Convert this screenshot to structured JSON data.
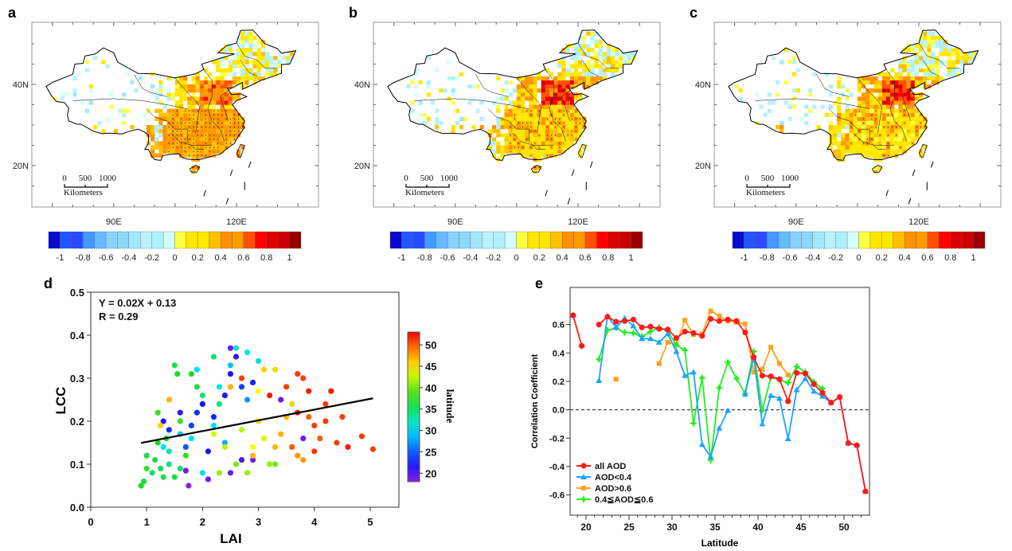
{
  "panels": {
    "a": "a",
    "b": "b",
    "c": "c",
    "d": "d",
    "e": "e"
  },
  "maps": {
    "lon_ticks": [
      "90E",
      "120E"
    ],
    "lat_ticks": [
      "40N",
      "20N"
    ],
    "scale_labels": [
      "0",
      "500",
      "1000"
    ],
    "scale_unit": "Kilometers",
    "colorbar_labels": [
      "-1",
      "-0.8",
      "-0.6",
      "-0.4",
      "-0.2",
      "0",
      "0.2",
      "0.4",
      "0.6",
      "0.8",
      "1"
    ],
    "colorbar_colors": [
      "#0a0acc",
      "#2255ff",
      "#2a4cff",
      "#4499ff",
      "#66bbff",
      "#88d4ff",
      "#8cd8f8",
      "#a0e8ff",
      "#b8f2ff",
      "#b0f0ff",
      "#d4ffff",
      "#ffff44",
      "#ffe600",
      "#ffe800",
      "#ffc000",
      "#ff9000",
      "#ff9a00",
      "#ff5000",
      "#ff0000",
      "#dd0000",
      "#cc0000",
      "#990000"
    ]
  },
  "chart_data": [
    {
      "type": "scatter",
      "panel": "d",
      "xlabel": "LAI",
      "ylabel": "LCC",
      "xlim": [
        0,
        5.5
      ],
      "ylim": [
        0,
        0.5
      ],
      "xticks": [
        "0",
        "1",
        "2",
        "3",
        "4",
        "5"
      ],
      "yticks": [
        "0.0",
        "0.1",
        "0.2",
        "0.3",
        "0.4",
        "0.5"
      ],
      "equation": "Y = 0.02X + 0.13",
      "r_text": "R = 0.29",
      "fit": {
        "slope": 0.025,
        "intercept": 0.127,
        "x_range": [
          0.9,
          5.05
        ]
      },
      "colorbar": {
        "label": "latitude",
        "ticks": [
          "20",
          "25",
          "30",
          "35",
          "40",
          "45",
          "50"
        ],
        "range": [
          18,
          53
        ]
      },
      "points": [
        [
          0.9,
          0.05,
          37
        ],
        [
          0.95,
          0.06,
          36
        ],
        [
          1.0,
          0.09,
          38
        ],
        [
          1.0,
          0.12,
          36
        ],
        [
          1.1,
          0.08,
          35
        ],
        [
          1.2,
          0.15,
          37
        ],
        [
          1.3,
          0.07,
          36
        ],
        [
          1.4,
          0.1,
          34
        ],
        [
          1.5,
          0.33,
          36
        ],
        [
          1.55,
          0.31,
          37
        ],
        [
          1.2,
          0.22,
          38
        ],
        [
          1.4,
          0.13,
          33
        ],
        [
          1.6,
          0.09,
          35
        ],
        [
          1.7,
          0.12,
          38
        ],
        [
          1.8,
          0.31,
          37
        ],
        [
          1.9,
          0.28,
          36
        ],
        [
          2.0,
          0.26,
          35
        ],
        [
          2.2,
          0.35,
          35
        ],
        [
          2.3,
          0.24,
          34
        ],
        [
          1.6,
          0.2,
          38
        ],
        [
          1.15,
          0.11,
          36
        ],
        [
          1.35,
          0.16,
          37
        ],
        [
          1.5,
          0.07,
          36
        ],
        [
          1.25,
          0.09,
          35
        ],
        [
          1.3,
          0.2,
          22
        ],
        [
          1.4,
          0.18,
          23
        ],
        [
          1.6,
          0.22,
          21
        ],
        [
          1.8,
          0.19,
          24
        ],
        [
          2.0,
          0.24,
          22
        ],
        [
          2.2,
          0.21,
          23
        ],
        [
          2.5,
          0.31,
          22
        ],
        [
          2.6,
          0.35,
          21
        ],
        [
          2.7,
          0.28,
          24
        ],
        [
          2.9,
          0.29,
          23
        ],
        [
          1.7,
          0.14,
          25
        ],
        [
          2.1,
          0.13,
          22
        ],
        [
          2.4,
          0.26,
          22
        ],
        [
          1.9,
          0.22,
          23
        ],
        [
          1.75,
          0.05,
          18
        ],
        [
          2.1,
          0.065,
          19
        ],
        [
          2.5,
          0.08,
          19
        ],
        [
          1.7,
          0.085,
          19
        ],
        [
          2.5,
          0.37,
          19
        ],
        [
          3.4,
          0.25,
          19
        ],
        [
          2.7,
          0.11,
          20
        ],
        [
          2.9,
          0.11,
          19
        ],
        [
          3.8,
          0.16,
          19
        ],
        [
          1.3,
          0.14,
          30
        ],
        [
          1.6,
          0.17,
          29
        ],
        [
          1.9,
          0.32,
          30
        ],
        [
          2.2,
          0.19,
          31
        ],
        [
          2.5,
          0.33,
          29
        ],
        [
          2.6,
          0.37,
          32
        ],
        [
          2.8,
          0.36,
          31
        ],
        [
          3.0,
          0.34,
          32
        ],
        [
          2.0,
          0.08,
          30
        ],
        [
          2.4,
          0.15,
          28
        ],
        [
          2.8,
          0.25,
          27
        ],
        [
          1.8,
          0.16,
          30
        ],
        [
          2.3,
          0.28,
          31
        ],
        [
          2.2,
          0.17,
          43
        ],
        [
          2.4,
          0.14,
          42
        ],
        [
          2.8,
          0.08,
          41
        ],
        [
          2.9,
          0.14,
          44
        ],
        [
          3.0,
          0.2,
          43
        ],
        [
          3.2,
          0.1,
          41
        ],
        [
          3.3,
          0.1,
          40
        ],
        [
          3.0,
          0.27,
          44
        ],
        [
          2.6,
          0.1,
          40
        ],
        [
          2.3,
          0.08,
          41
        ],
        [
          2.7,
          0.18,
          42
        ],
        [
          3.1,
          0.16,
          43
        ],
        [
          1.25,
          0.19,
          46
        ],
        [
          1.4,
          0.25,
          47
        ],
        [
          2.5,
          0.28,
          47
        ],
        [
          3.1,
          0.32,
          46
        ],
        [
          3.3,
          0.32,
          46
        ],
        [
          3.4,
          0.17,
          47
        ],
        [
          3.6,
          0.24,
          46
        ],
        [
          3.7,
          0.12,
          48
        ],
        [
          3.0,
          0.2,
          46
        ],
        [
          2.9,
          0.12,
          47
        ],
        [
          3.8,
          0.11,
          48
        ],
        [
          3.3,
          0.14,
          47
        ],
        [
          3.5,
          0.21,
          47
        ],
        [
          3.5,
          0.28,
          51
        ],
        [
          3.7,
          0.31,
          51
        ],
        [
          3.9,
          0.27,
          52
        ],
        [
          4.0,
          0.13,
          51
        ],
        [
          4.2,
          0.24,
          51
        ],
        [
          4.3,
          0.27,
          52
        ],
        [
          4.4,
          0.15,
          51
        ],
        [
          4.5,
          0.21,
          51
        ],
        [
          4.6,
          0.14,
          52
        ],
        [
          4.85,
          0.165,
          51
        ],
        [
          5.05,
          0.135,
          51
        ],
        [
          4.1,
          0.16,
          50
        ],
        [
          3.8,
          0.3,
          51
        ],
        [
          3.2,
          0.26,
          52
        ],
        [
          2.7,
          0.3,
          51
        ],
        [
          3.9,
          0.21,
          50
        ],
        [
          4.2,
          0.2,
          51
        ],
        [
          3.6,
          0.14,
          50
        ],
        [
          4.0,
          0.19,
          51
        ],
        [
          3.7,
          0.22,
          52
        ]
      ]
    },
    {
      "type": "line",
      "panel": "e",
      "xlabel": "Latitude",
      "ylabel": "Correlation Coefficient",
      "xlim": [
        18.2,
        52.8
      ],
      "ylim": [
        -0.62,
        0.72
      ],
      "xticks": [
        "20",
        "25",
        "30",
        "35",
        "40",
        "45",
        "50"
      ],
      "yticks": [
        "-0.6",
        "-0.4",
        "-0.2",
        "0.0",
        "0.2",
        "0.4",
        "0.6"
      ],
      "reference_line": 0,
      "legend_position": "bottom-left",
      "series": [
        {
          "name": "all AOD",
          "color": "#ff1a1a",
          "marker": "circle",
          "points": [
            [
              18.5,
              0.665
            ],
            [
              19.5,
              0.45
            ],
            null,
            [
              21.5,
              0.6
            ],
            [
              22.5,
              0.655
            ],
            [
              23.5,
              0.62
            ],
            [
              24.5,
              0.625
            ],
            [
              25.5,
              0.635
            ],
            [
              26.5,
              0.58
            ],
            [
              27.5,
              0.585
            ],
            [
              28.5,
              0.57
            ],
            [
              29.5,
              0.565
            ],
            [
              30.5,
              0.505
            ],
            [
              31.5,
              0.55
            ],
            [
              32.5,
              0.54
            ],
            [
              33.5,
              0.52
            ],
            [
              34.5,
              0.64
            ],
            [
              35.5,
              0.625
            ],
            [
              36.5,
              0.635
            ],
            [
              37.5,
              0.625
            ],
            [
              38.5,
              0.545
            ],
            [
              39.5,
              0.37
            ],
            [
              40.5,
              0.24
            ],
            [
              41.5,
              0.235
            ],
            [
              42.5,
              0.215
            ],
            [
              43.5,
              0.06
            ],
            [
              44.5,
              0.26
            ],
            [
              45.5,
              0.255
            ],
            [
              46.5,
              0.18
            ],
            [
              47.5,
              0.12
            ],
            [
              48.5,
              0.05
            ],
            [
              49.5,
              0.09
            ],
            [
              50.5,
              -0.235
            ],
            [
              51.5,
              -0.25
            ],
            [
              52.5,
              -0.575
            ]
          ]
        },
        {
          "name": "AOD<0.4",
          "color": "#1aa3ff",
          "marker": "triangle",
          "points": [
            [
              18.5,
              0.665
            ],
            null,
            [
              21.5,
              0.205
            ],
            [
              22.5,
              0.66
            ],
            [
              23.5,
              0.58
            ],
            [
              24.5,
              0.645
            ],
            [
              25.5,
              0.59
            ],
            [
              26.5,
              0.5
            ],
            [
              27.5,
              0.5
            ],
            [
              28.5,
              0.475
            ],
            [
              29.5,
              0.535
            ],
            [
              30.5,
              0.41
            ],
            [
              31.5,
              0.24
            ],
            [
              32.5,
              0.265
            ],
            [
              33.5,
              -0.245
            ],
            [
              34.5,
              -0.33
            ],
            [
              35.5,
              -0.13
            ],
            [
              36.5,
              -0.005
            ],
            null,
            [
              38.5,
              0.11
            ],
            [
              39.5,
              0.37
            ],
            [
              40.5,
              -0.1
            ],
            [
              41.5,
              0.1
            ],
            [
              42.5,
              0.08
            ],
            [
              43.5,
              -0.205
            ],
            [
              44.5,
              0.14
            ],
            [
              45.5,
              0.22
            ],
            [
              46.5,
              0.13
            ],
            [
              47.5,
              0.095
            ],
            [
              48.5,
              0.05
            ],
            [
              49.5,
              0.09
            ],
            [
              50.5,
              -0.235
            ],
            [
              51.5,
              -0.25
            ],
            [
              52.5,
              -0.575
            ]
          ]
        },
        {
          "name": "AOD>0.6",
          "color": "#ffa21a",
          "marker": "square",
          "points": [
            [
              23.5,
              0.215
            ],
            null,
            [
              28.5,
              0.325
            ],
            [
              29.5,
              0.475
            ],
            [
              30.5,
              0.46
            ],
            [
              31.5,
              0.63
            ],
            [
              32.5,
              0.53
            ],
            [
              33.5,
              0.535
            ],
            [
              34.5,
              0.695
            ],
            [
              35.5,
              0.66
            ],
            [
              36.5,
              0.625
            ],
            [
              37.5,
              0.615
            ],
            [
              38.5,
              0.605
            ],
            [
              39.5,
              0.265
            ],
            [
              40.5,
              0.285
            ],
            [
              41.5,
              0.44
            ],
            [
              42.5,
              0.325
            ],
            [
              43.5,
              0.245
            ]
          ]
        },
        {
          "name": "0.4≦AOD≦0.6",
          "color": "#22ee22",
          "marker": "star",
          "points": [
            [
              19.5,
              0.45
            ],
            null,
            [
              21.5,
              0.355
            ],
            [
              22.5,
              0.56
            ],
            [
              23.5,
              0.575
            ],
            [
              24.5,
              0.545
            ],
            [
              25.5,
              0.54
            ],
            [
              26.5,
              0.515
            ],
            [
              27.5,
              0.55
            ],
            [
              28.5,
              0.58
            ],
            [
              29.5,
              0.555
            ],
            [
              30.5,
              0.455
            ],
            [
              31.5,
              0.42
            ],
            [
              32.5,
              -0.095
            ],
            [
              33.5,
              0.225
            ],
            [
              34.5,
              -0.355
            ],
            [
              35.5,
              0.155
            ],
            [
              36.5,
              0.335
            ],
            [
              37.5,
              0.22
            ],
            [
              38.5,
              0.115
            ],
            [
              39.5,
              0.41
            ],
            [
              40.5,
              -0.005
            ],
            [
              41.5,
              0.23
            ],
            [
              42.5,
              0.21
            ],
            [
              43.5,
              0.19
            ],
            [
              44.5,
              0.305
            ],
            [
              45.5,
              0.265
            ],
            [
              46.5,
              0.195
            ],
            [
              47.5,
              0.15
            ]
          ]
        }
      ]
    }
  ]
}
